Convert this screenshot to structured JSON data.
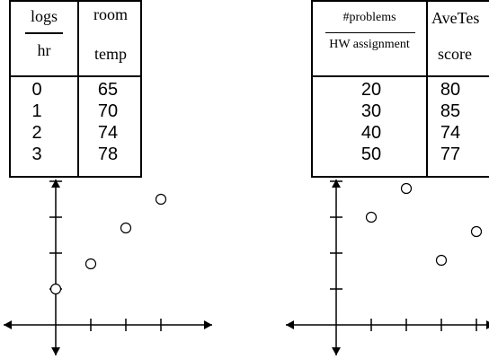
{
  "chart_data": [
    {
      "type": "table",
      "columns": [
        {
          "header_top": "logs",
          "header_bottom": "hr"
        },
        {
          "header_top": "room",
          "header_bottom": "temp"
        }
      ],
      "rows": [
        [
          "0",
          "65"
        ],
        [
          "1",
          "70"
        ],
        [
          "2",
          "74"
        ],
        [
          "3",
          "78"
        ]
      ]
    },
    {
      "type": "scatter",
      "x": [
        0,
        1,
        2,
        3
      ],
      "y": [
        1,
        1.7,
        2.7,
        3.5
      ],
      "xlim": [
        -1.5,
        4.5
      ],
      "ylim": [
        -1,
        5
      ],
      "grid": false
    },
    {
      "type": "table",
      "columns": [
        {
          "header_top": "#problems",
          "header_bottom": "HW assignment"
        },
        {
          "header_top": "AveTes",
          "header_bottom": "score"
        }
      ],
      "rows": [
        [
          "20",
          "80"
        ],
        [
          "30",
          "85"
        ],
        [
          "40",
          "74"
        ],
        [
          "50",
          "77"
        ]
      ]
    },
    {
      "type": "scatter",
      "x": [
        1,
        2,
        3,
        4
      ],
      "y": [
        3,
        3.8,
        1.8,
        2.6
      ],
      "xlim": [
        -1.5,
        4.5
      ],
      "ylim": [
        -1,
        5
      ],
      "grid": false
    }
  ]
}
